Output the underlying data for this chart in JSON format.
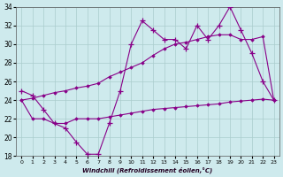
{
  "xlabel": "Windchill (Refroidissement éolien,°C)",
  "x": [
    0,
    1,
    2,
    3,
    4,
    5,
    6,
    7,
    8,
    9,
    10,
    11,
    12,
    13,
    14,
    15,
    16,
    17,
    18,
    19,
    20,
    21,
    22,
    23
  ],
  "line1": [
    25.0,
    24.5,
    23.0,
    21.5,
    21.0,
    19.5,
    18.2,
    18.2,
    21.5,
    25.0,
    30.0,
    32.5,
    31.5,
    30.5,
    30.5,
    29.5,
    32.0,
    30.5,
    32.0,
    34.0,
    31.5,
    29.0,
    26.0,
    24.0
  ],
  "line2": [
    24.0,
    24.2,
    24.5,
    24.8,
    25.0,
    25.3,
    25.5,
    25.8,
    26.5,
    27.0,
    27.5,
    28.0,
    28.8,
    29.5,
    30.0,
    30.2,
    30.5,
    30.8,
    31.0,
    31.0,
    30.5,
    30.5,
    30.8,
    24.0
  ],
  "line3": [
    24.0,
    22.0,
    22.0,
    21.5,
    21.5,
    22.0,
    22.0,
    22.0,
    22.2,
    22.4,
    22.6,
    22.8,
    23.0,
    23.1,
    23.2,
    23.3,
    23.4,
    23.5,
    23.6,
    23.8,
    23.9,
    24.0,
    24.1,
    24.0
  ],
  "line_color": "#880088",
  "bg_color": "#ceeaed",
  "grid_color": "#aacccc",
  "ylim": [
    18,
    34
  ],
  "xlim_min": -0.5,
  "xlim_max": 23.5,
  "yticks": [
    18,
    20,
    22,
    24,
    26,
    28,
    30,
    32,
    34
  ]
}
